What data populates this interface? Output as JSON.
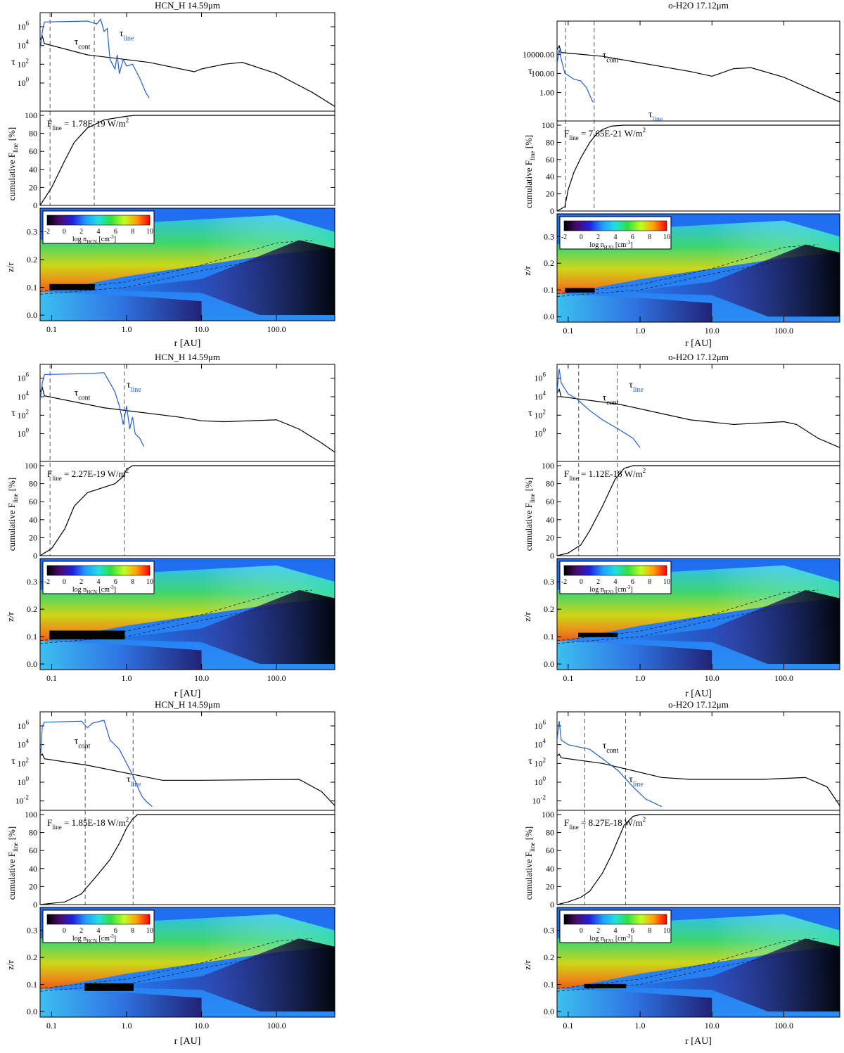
{
  "figure": {
    "colors": {
      "tau_cont": "#000000",
      "tau_line": "#1f5fd6",
      "cumulative": "#000000",
      "axes": "#000000",
      "dashed": "#555555"
    },
    "common": {
      "tau_label": "τ",
      "tau_cont_label": "τcont",
      "tau_line_label": "τline",
      "cum_ylabel": "cumulative F",
      "cum_ylabel_sub": "line",
      "cum_ylabel_unit": " [%]",
      "zr_label": "z/r",
      "r_label": "r [AU]",
      "flux_prefix": "F",
      "flux_sub": "line",
      "flux_unit": " W/m",
      "flux_sup": "2",
      "cb_label_prefix": "log n",
      "cb_label_unit": " [cm",
      "cb_label_sup": "-3",
      "cb_label_close": "]",
      "x_ticks": [
        "0.1",
        "1.0",
        "10.0",
        "100.0"
      ],
      "cum_ticks": [
        "0",
        "20",
        "40",
        "60",
        "80",
        "100"
      ],
      "zr_ticks": [
        "0.0",
        "0.1",
        "0.2",
        "0.3"
      ],
      "cb_ticks": [
        "-2",
        "0",
        "2",
        "4",
        "6",
        "8",
        "10"
      ]
    }
  },
  "chart_data": [
    {
      "type": "line",
      "title": "HCN_H 14.59μm",
      "species": "HCN",
      "flux": "1.78E-19",
      "tau_ticks": [
        "10^6",
        "10^4",
        "10^2",
        "10^0"
      ],
      "x_range": [
        0.07,
        600
      ],
      "dashed_r": [
        0.095,
        0.37
      ],
      "tau_cont": {
        "r": [
          0.07,
          0.075,
          0.08,
          0.3,
          2,
          8,
          10,
          20,
          35,
          100,
          300,
          600
        ],
        "log_tau": [
          4.6,
          5.0,
          4.2,
          3.0,
          2.2,
          1.2,
          1.5,
          2.0,
          2.2,
          1.0,
          -1.0,
          -2.5
        ]
      },
      "tau_line": {
        "r": [
          0.07,
          0.075,
          0.08,
          0.3,
          0.4,
          0.45,
          0.5,
          0.55,
          0.6,
          0.7,
          0.75,
          0.8,
          0.9,
          1.0,
          1.2,
          1.5,
          1.8,
          2.0
        ],
        "log_tau": [
          3.5,
          5.5,
          6.5,
          6.6,
          6.3,
          6.8,
          5.5,
          5.8,
          2.5,
          1.5,
          3.0,
          1.0,
          2.5,
          1.8,
          2.0,
          0.5,
          -1.0,
          -1.6
        ]
      },
      "cumulative": {
        "r": [
          0.07,
          0.1,
          0.15,
          0.2,
          0.3,
          0.5,
          1.0,
          1.3,
          600
        ],
        "pct": [
          0,
          20,
          50,
          70,
          86,
          95,
          99,
          100,
          100
        ]
      },
      "emitting_region": {
        "r": [
          0.095,
          0.37
        ],
        "zr": [
          0.092,
          0.11
        ]
      },
      "cb_show_neg": true
    },
    {
      "type": "line",
      "title": "o-H2O 17.12μm",
      "species": "H2O",
      "flux": "7.65E-21",
      "tau_ticks": [
        "10000.00",
        "100.00",
        "1.00"
      ],
      "x_range": [
        0.07,
        600
      ],
      "dashed_r": [
        0.092,
        0.23
      ],
      "tau_cont": {
        "r": [
          0.07,
          0.075,
          0.08,
          0.3,
          5,
          10,
          20,
          35,
          100,
          300,
          600
        ],
        "log_tau": [
          4.5,
          4.9,
          4.2,
          3.8,
          2.2,
          1.7,
          2.5,
          2.6,
          1.6,
          0.0,
          -1.0
        ]
      },
      "tau_line": {
        "r": [
          0.07,
          0.075,
          0.08,
          0.09,
          0.1,
          0.12,
          0.15,
          0.18,
          0.2,
          0.22
        ],
        "log_tau": [
          3.0,
          4.5,
          3.5,
          2.0,
          1.8,
          1.4,
          1.2,
          0.5,
          -0.3,
          -1.0
        ]
      },
      "cumulative": {
        "r": [
          0.07,
          0.09,
          0.1,
          0.12,
          0.15,
          0.2,
          0.25,
          0.3,
          0.4,
          0.6,
          600
        ],
        "pct": [
          0,
          5,
          25,
          45,
          62,
          80,
          90,
          95,
          99,
          100,
          100
        ]
      },
      "emitting_region": {
        "r": [
          0.092,
          0.23
        ],
        "zr": [
          0.092,
          0.105
        ]
      },
      "cb_show_neg": true
    },
    {
      "type": "line",
      "title": "HCN_H 14.59μm",
      "species": "HCN",
      "flux": "2.27E-19",
      "tau_ticks": [
        "10^6",
        "10^4",
        "10^2",
        "10^0"
      ],
      "x_range": [
        0.07,
        600
      ],
      "dashed_r": [
        0.095,
        0.93
      ],
      "tau_cont": {
        "r": [
          0.07,
          0.075,
          0.08,
          0.5,
          5,
          10,
          20,
          100,
          200,
          400,
          600
        ],
        "log_tau": [
          4.5,
          5.0,
          4.1,
          2.8,
          1.8,
          1.4,
          1.3,
          1.5,
          0.5,
          -1.0,
          -2.0
        ]
      },
      "tau_line": {
        "r": [
          0.07,
          0.075,
          0.08,
          0.3,
          0.5,
          0.6,
          0.7,
          0.8,
          0.9,
          1.0,
          1.1,
          1.2,
          1.3,
          1.5,
          1.7
        ],
        "log_tau": [
          3.5,
          5.5,
          6.4,
          6.5,
          6.6,
          5.5,
          4.5,
          3.0,
          1.0,
          3.0,
          0.5,
          1.8,
          0.0,
          -0.5,
          -1.4
        ]
      },
      "cumulative": {
        "r": [
          0.07,
          0.1,
          0.15,
          0.2,
          0.3,
          0.5,
          0.7,
          0.9,
          1.0,
          1.2,
          600
        ],
        "pct": [
          0,
          8,
          30,
          55,
          70,
          76,
          80,
          88,
          96,
          100,
          100
        ]
      },
      "emitting_region": {
        "r": [
          0.095,
          0.93
        ],
        "zr": [
          0.092,
          0.12
        ]
      },
      "cb_show_neg": true
    },
    {
      "type": "line",
      "title": "o-H2O 17.12μm",
      "species": "H2O",
      "flux": "1.12E-18",
      "tau_ticks": [
        "10^6",
        "10^4",
        "10^2",
        "10^0"
      ],
      "x_range": [
        0.07,
        600
      ],
      "dashed_r": [
        0.14,
        0.48
      ],
      "tau_cont": {
        "r": [
          0.07,
          0.075,
          0.08,
          0.5,
          5,
          20,
          100,
          150,
          300,
          600
        ],
        "log_tau": [
          4.4,
          4.8,
          4.0,
          3.2,
          1.5,
          1.0,
          1.3,
          1.0,
          -0.5,
          -1.5
        ]
      },
      "tau_line": {
        "r": [
          0.07,
          0.075,
          0.08,
          0.1,
          0.13,
          0.2,
          0.3,
          0.5,
          0.8,
          1.0
        ],
        "log_tau": [
          4.5,
          7.0,
          5.5,
          4.3,
          3.8,
          2.5,
          1.5,
          0.5,
          -0.5,
          -1.5
        ]
      },
      "cumulative": {
        "r": [
          0.07,
          0.1,
          0.15,
          0.2,
          0.3,
          0.45,
          0.6,
          0.8,
          600
        ],
        "pct": [
          0,
          3,
          12,
          28,
          55,
          85,
          97,
          100,
          100
        ]
      },
      "emitting_region": {
        "r": [
          0.14,
          0.48
        ],
        "zr": [
          0.1,
          0.112
        ]
      },
      "cb_show_neg": true
    },
    {
      "type": "line",
      "title": "HCN_H 14.59μm",
      "species": "HCN",
      "flux": "1.85E-18",
      "tau_ticks": [
        "10^6",
        "10^4",
        "10^2",
        "10^0",
        "10^-2"
      ],
      "x_range": [
        0.07,
        600
      ],
      "dashed_r": [
        0.28,
        1.22
      ],
      "tau_cont": {
        "r": [
          0.07,
          0.075,
          0.08,
          0.3,
          3,
          10,
          200,
          400,
          600
        ],
        "log_tau": [
          2.8,
          3.0,
          2.5,
          1.8,
          0.2,
          0.2,
          0.3,
          -1.0,
          -2.5
        ]
      },
      "tau_line": {
        "r": [
          0.07,
          0.075,
          0.08,
          0.25,
          0.3,
          0.35,
          0.5,
          0.6,
          0.8,
          1.0,
          1.2,
          1.4,
          1.6,
          1.8,
          2.2
        ],
        "log_tau": [
          2.0,
          6.0,
          6.4,
          6.5,
          5.8,
          6.3,
          6.6,
          4.5,
          3.5,
          2.0,
          0.8,
          -0.5,
          -1.5,
          -2.0,
          -2.6
        ]
      },
      "cumulative": {
        "r": [
          0.07,
          0.15,
          0.25,
          0.3,
          0.4,
          0.6,
          0.8,
          1.0,
          1.2,
          1.4,
          600
        ],
        "pct": [
          0,
          3,
          12,
          20,
          32,
          50,
          68,
          85,
          95,
          100,
          100
        ]
      },
      "emitting_region": {
        "r": [
          0.28,
          1.22
        ],
        "zr": [
          0.078,
          0.102
        ]
      },
      "cb_show_neg": false
    },
    {
      "type": "line",
      "title": "o-H2O 17.12μm",
      "species": "H2O",
      "flux": "8.27E-18",
      "tau_ticks": [
        "10^6",
        "10^4",
        "10^2",
        "10^0",
        "10^-2"
      ],
      "x_range": [
        0.07,
        600
      ],
      "dashed_r": [
        0.17,
        0.63
      ],
      "tau_cont": {
        "r": [
          0.07,
          0.075,
          0.08,
          0.3,
          2,
          5,
          50,
          200,
          400,
          600
        ],
        "log_tau": [
          2.8,
          3.0,
          2.6,
          2.0,
          0.5,
          0.3,
          0.3,
          0.5,
          -0.5,
          -2.5
        ]
      },
      "tau_line": {
        "r": [
          0.07,
          0.075,
          0.08,
          0.1,
          0.2,
          0.3,
          0.5,
          0.8,
          1.2,
          2.0
        ],
        "log_tau": [
          4.5,
          6.5,
          4.5,
          4.0,
          3.5,
          2.5,
          1.2,
          -0.5,
          -1.8,
          -2.6
        ]
      },
      "cumulative": {
        "r": [
          0.07,
          0.1,
          0.15,
          0.2,
          0.3,
          0.4,
          0.6,
          0.8,
          1.0,
          600
        ],
        "pct": [
          0,
          3,
          8,
          15,
          35,
          55,
          88,
          98,
          100,
          100
        ]
      },
      "emitting_region": {
        "r": [
          0.17,
          0.63
        ],
        "zr": [
          0.088,
          0.1
        ]
      },
      "cb_show_neg": false
    }
  ]
}
